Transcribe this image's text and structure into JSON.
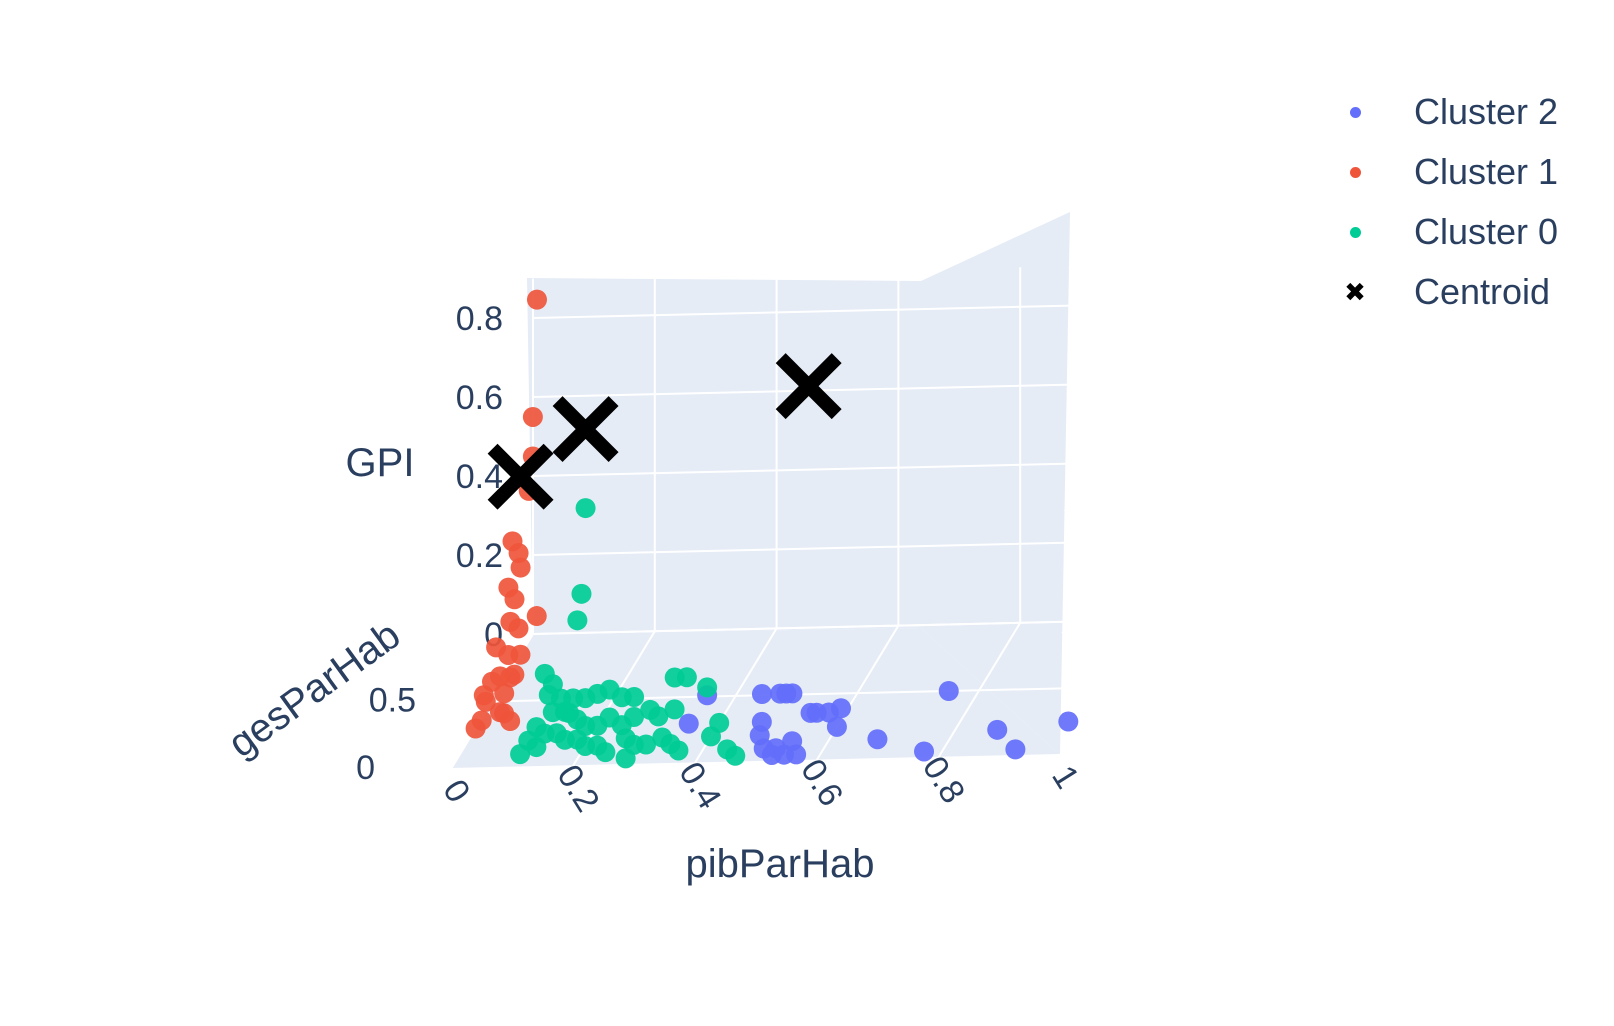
{
  "chart_data": {
    "type": "scatter3d",
    "title": "",
    "axes": {
      "x": {
        "label": "pibParHab",
        "ticks": [
          "0",
          "0.2",
          "0.4",
          "0.6",
          "0.8",
          "1"
        ],
        "range": [
          0,
          1
        ]
      },
      "y": {
        "label": "gesParHab",
        "ticks": [
          "0",
          "0.5"
        ],
        "range": [
          0,
          1
        ]
      },
      "z": {
        "label": "GPI",
        "ticks": [
          "0",
          "0.2",
          "0.4",
          "0.6",
          "0.8"
        ],
        "range": [
          0,
          0.9
        ]
      }
    },
    "grid": true,
    "legend_position": "top-right",
    "series": [
      {
        "name": "Cluster 2",
        "color": "#636efa",
        "marker": "dot",
        "points": [
          [
            0.36,
            0.45,
            0.02
          ],
          [
            0.35,
            0.3,
            0.0
          ],
          [
            0.45,
            0.45,
            0.02
          ],
          [
            0.48,
            0.45,
            0.02
          ],
          [
            0.49,
            0.45,
            0.02
          ],
          [
            0.5,
            0.45,
            0.02
          ],
          [
            0.47,
            0.3,
            0.0
          ],
          [
            0.55,
            0.3,
            0.02
          ],
          [
            0.56,
            0.3,
            0.02
          ],
          [
            0.58,
            0.3,
            0.02
          ],
          [
            0.6,
            0.3,
            0.03
          ],
          [
            0.6,
            0.25,
            0.0
          ],
          [
            0.5,
            0.1,
            0.0
          ],
          [
            0.52,
            0.1,
            0.0
          ],
          [
            0.54,
            0.15,
            0.0
          ],
          [
            0.52,
            0.05,
            0.0
          ],
          [
            0.54,
            0.05,
            0.0
          ],
          [
            0.56,
            0.05,
            0.0
          ],
          [
            0.48,
            0.2,
            0.0
          ],
          [
            0.68,
            0.15,
            0.0
          ],
          [
            0.75,
            0.5,
            0.0
          ],
          [
            0.77,
            0.05,
            0.0
          ],
          [
            0.87,
            0.2,
            0.0
          ],
          [
            0.92,
            0.05,
            0.0
          ],
          [
            0.98,
            0.25,
            0.0
          ]
        ]
      },
      {
        "name": "Cluster 1",
        "color": "#ef553b",
        "marker": "dot",
        "points": [
          [
            0.02,
            0.9,
            0.88
          ],
          [
            0.02,
            0.85,
            0.6
          ],
          [
            0.02,
            0.85,
            0.5
          ],
          [
            0.02,
            0.8,
            0.43
          ],
          [
            0.0,
            0.75,
            0.32
          ],
          [
            0.01,
            0.75,
            0.29
          ],
          [
            0.02,
            0.7,
            0.27
          ],
          [
            0.0,
            0.7,
            0.22
          ],
          [
            0.01,
            0.7,
            0.19
          ],
          [
            0.01,
            0.65,
            0.15
          ],
          [
            0.03,
            0.6,
            0.15
          ],
          [
            0.0,
            0.55,
            0.12
          ],
          [
            0.02,
            0.55,
            0.1
          ],
          [
            0.04,
            0.55,
            0.1
          ],
          [
            0.0,
            0.5,
            0.05
          ],
          [
            0.02,
            0.5,
            0.02
          ],
          [
            0.03,
            0.55,
            0.05
          ],
          [
            0.0,
            0.4,
            0.05
          ],
          [
            0.01,
            0.35,
            0.05
          ],
          [
            0.0,
            0.3,
            0.0
          ],
          [
            0.01,
            0.3,
            0.02
          ],
          [
            0.04,
            0.3,
            0.04
          ],
          [
            0.06,
            0.6,
            0.18
          ],
          [
            0.02,
            0.45,
            0.08
          ],
          [
            0.03,
            0.5,
            0.06
          ],
          [
            0.04,
            0.35,
            0.02
          ],
          [
            0.05,
            0.35,
            0.0
          ]
        ]
      },
      {
        "name": "Cluster 0",
        "color": "#00cc96",
        "marker": "dot",
        "points": [
          [
            0.12,
            0.75,
            0.4
          ],
          [
            0.12,
            0.7,
            0.2
          ],
          [
            0.12,
            0.65,
            0.15
          ],
          [
            0.08,
            0.55,
            0.05
          ],
          [
            0.1,
            0.5,
            0.04
          ],
          [
            0.1,
            0.45,
            0.03
          ],
          [
            0.12,
            0.45,
            0.02
          ],
          [
            0.14,
            0.45,
            0.02
          ],
          [
            0.16,
            0.45,
            0.02
          ],
          [
            0.18,
            0.45,
            0.03
          ],
          [
            0.2,
            0.45,
            0.04
          ],
          [
            0.22,
            0.45,
            0.02
          ],
          [
            0.24,
            0.45,
            0.02
          ],
          [
            0.12,
            0.35,
            0.02
          ],
          [
            0.14,
            0.35,
            0.02
          ],
          [
            0.16,
            0.35,
            0.0
          ],
          [
            0.18,
            0.3,
            0.0
          ],
          [
            0.2,
            0.3,
            0.0
          ],
          [
            0.22,
            0.3,
            0.02
          ],
          [
            0.24,
            0.3,
            0.0
          ],
          [
            0.26,
            0.3,
            0.02
          ],
          [
            0.28,
            0.35,
            0.02
          ],
          [
            0.3,
            0.3,
            0.02
          ],
          [
            0.32,
            0.35,
            0.02
          ],
          [
            0.26,
            0.2,
            0.0
          ],
          [
            0.28,
            0.15,
            0.0
          ],
          [
            0.3,
            0.15,
            0.0
          ],
          [
            0.32,
            0.2,
            0.0
          ],
          [
            0.34,
            0.15,
            0.0
          ],
          [
            0.1,
            0.3,
            0.0
          ],
          [
            0.12,
            0.25,
            0.0
          ],
          [
            0.14,
            0.25,
            0.0
          ],
          [
            0.16,
            0.2,
            0.0
          ],
          [
            0.18,
            0.2,
            0.0
          ],
          [
            0.1,
            0.2,
            0.0
          ],
          [
            0.12,
            0.15,
            0.0
          ],
          [
            0.2,
            0.15,
            0.0
          ],
          [
            0.22,
            0.15,
            0.0
          ],
          [
            0.24,
            0.1,
            0.0
          ],
          [
            0.3,
            0.5,
            0.05
          ],
          [
            0.32,
            0.5,
            0.05
          ],
          [
            0.36,
            0.45,
            0.04
          ],
          [
            0.4,
            0.3,
            0.0
          ],
          [
            0.4,
            0.2,
            0.0
          ],
          [
            0.36,
            0.1,
            0.0
          ],
          [
            0.44,
            0.1,
            0.0
          ],
          [
            0.46,
            0.05,
            0.0
          ],
          [
            0.1,
            0.1,
            0.0
          ],
          [
            0.28,
            0.05,
            0.0
          ],
          [
            0.14,
            0.4,
            0.0
          ]
        ]
      },
      {
        "name": "Centroid",
        "color": "#000000",
        "marker": "x",
        "points": [
          [
            0.02,
            0.7,
            0.5
          ],
          [
            0.12,
            0.75,
            0.6
          ],
          [
            0.52,
            0.5,
            0.78
          ]
        ]
      }
    ]
  }
}
